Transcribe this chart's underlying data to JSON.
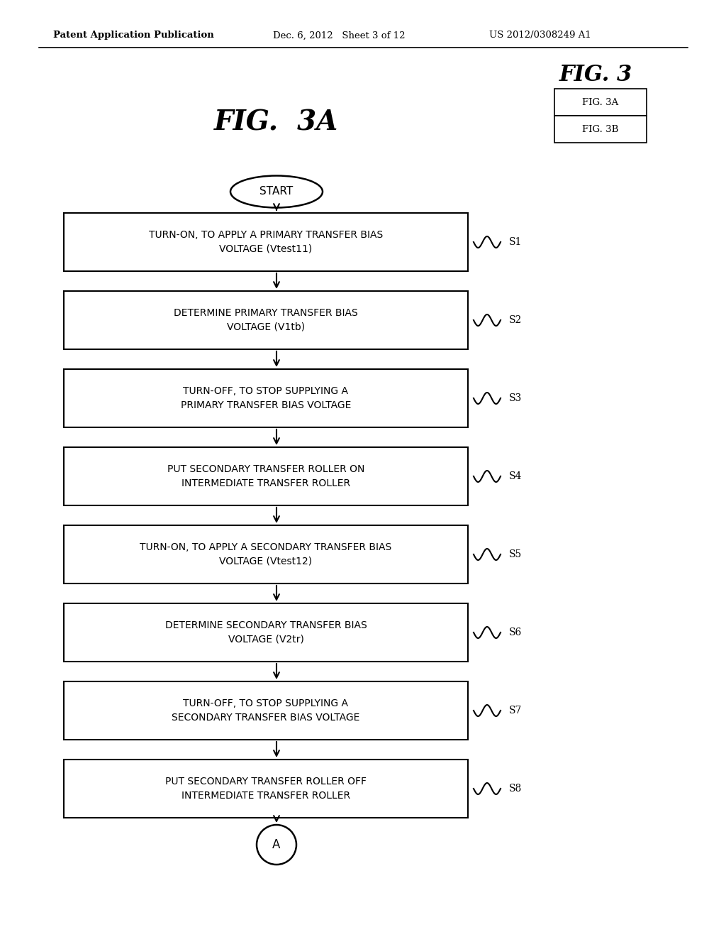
{
  "background_color": "#ffffff",
  "header_left": "Patent Application Publication",
  "header_center": "Dec. 6, 2012   Sheet 3 of 12",
  "header_right": "US 2012/0308249 A1",
  "fig_title_main": "FIG. 3",
  "fig_title_sub": "FIG.  3A",
  "fig3_legend": [
    "FIG. 3A",
    "FIG. 3B"
  ],
  "start_label": "START",
  "end_label": "A",
  "steps": [
    {
      "label": "TURN-ON, TO APPLY A PRIMARY TRANSFER BIAS\nVOLTAGE (Vtest11)",
      "step": "S1"
    },
    {
      "label": "DETERMINE PRIMARY TRANSFER BIAS\nVOLTAGE (V1tb)",
      "step": "S2"
    },
    {
      "label": "TURN-OFF, TO STOP SUPPLYING A\nPRIMARY TRANSFER BIAS VOLTAGE",
      "step": "S3"
    },
    {
      "label": "PUT SECONDARY TRANSFER ROLLER ON\nINTERMEDIATE TRANSFER ROLLER",
      "step": "S4"
    },
    {
      "label": "TURN-ON, TO APPLY A SECONDARY TRANSFER BIAS\nVOLTAGE (Vtest12)",
      "step": "S5"
    },
    {
      "label": "DETERMINE SECONDARY TRANSFER BIAS\nVOLTAGE (V2tr)",
      "step": "S6"
    },
    {
      "label": "TURN-OFF, TO STOP SUPPLYING A\nSECONDARY TRANSFER BIAS VOLTAGE",
      "step": "S7"
    },
    {
      "label": "PUT SECONDARY TRANSFER ROLLER OFF\nINTERMEDIATE TRANSFER ROLLER",
      "step": "S8"
    }
  ]
}
